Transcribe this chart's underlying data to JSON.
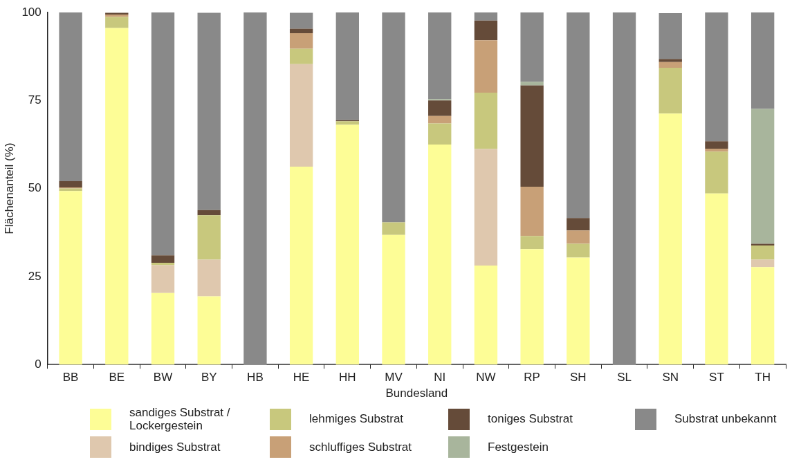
{
  "chart_data": {
    "type": "bar",
    "stacked": true,
    "xlabel": "Bundesland",
    "ylabel": "Flächenanteil (%)",
    "categories": [
      "BB",
      "BE",
      "BW",
      "BY",
      "HB",
      "HE",
      "HH",
      "MV",
      "NI",
      "NW",
      "RP",
      "SH",
      "SL",
      "SN",
      "ST",
      "TH"
    ],
    "ylim": [
      0,
      100
    ],
    "yticks": [
      0,
      25,
      50,
      75,
      100
    ],
    "grid": false,
    "legend": "bottom",
    "series": [
      {
        "name": "sandiges Substrat / Lockergestein",
        "color": "#fdfd96",
        "values": [
          49.3,
          95.6,
          20.3,
          19.4,
          0,
          56.2,
          68.1,
          36.8,
          62.5,
          28.1,
          32.8,
          30.4,
          0,
          71.3,
          48.6,
          27.7
        ]
      },
      {
        "name": "bindiges Substrat",
        "color": "#dfc8ae",
        "values": [
          0,
          0,
          7.9,
          10.4,
          0,
          29.1,
          0,
          0,
          0,
          33.1,
          0,
          0,
          0,
          0,
          0,
          2.1
        ]
      },
      {
        "name": "lehmiges Substrat",
        "color": "#c8c87d",
        "values": [
          0.7,
          3.1,
          0.7,
          12.6,
          0,
          4.4,
          1.0,
          3.6,
          6.0,
          16.0,
          3.7,
          3.9,
          0,
          13.0,
          11.9,
          4.0
        ]
      },
      {
        "name": "schluffiges Substrat",
        "color": "#c8a077",
        "values": [
          0.3,
          0.7,
          0,
          0,
          0,
          4.4,
          0,
          0,
          2.1,
          14.9,
          14.0,
          3.8,
          0,
          1.6,
          0.8,
          0
        ]
      },
      {
        "name": "toniges Substrat",
        "color": "#654b39",
        "values": [
          1.8,
          0.5,
          2.1,
          1.5,
          0,
          1.3,
          0.3,
          0,
          4.4,
          5.6,
          28.8,
          3.5,
          0,
          0.9,
          2.1,
          0.5
        ]
      },
      {
        "name": "Festgestein",
        "color": "#a8b59c",
        "values": [
          0,
          0,
          0,
          0,
          0,
          0,
          0,
          0,
          0.4,
          0,
          1.0,
          0,
          0,
          0,
          0,
          38.3
        ]
      },
      {
        "name": "Substrat unbekannt",
        "color": "#898989",
        "values": [
          47.9,
          0,
          69.0,
          56.0,
          100,
          4.5,
          30.6,
          59.6,
          24.6,
          2.3,
          19.7,
          58.4,
          100,
          13.0,
          36.6,
          27.4
        ]
      }
    ]
  }
}
